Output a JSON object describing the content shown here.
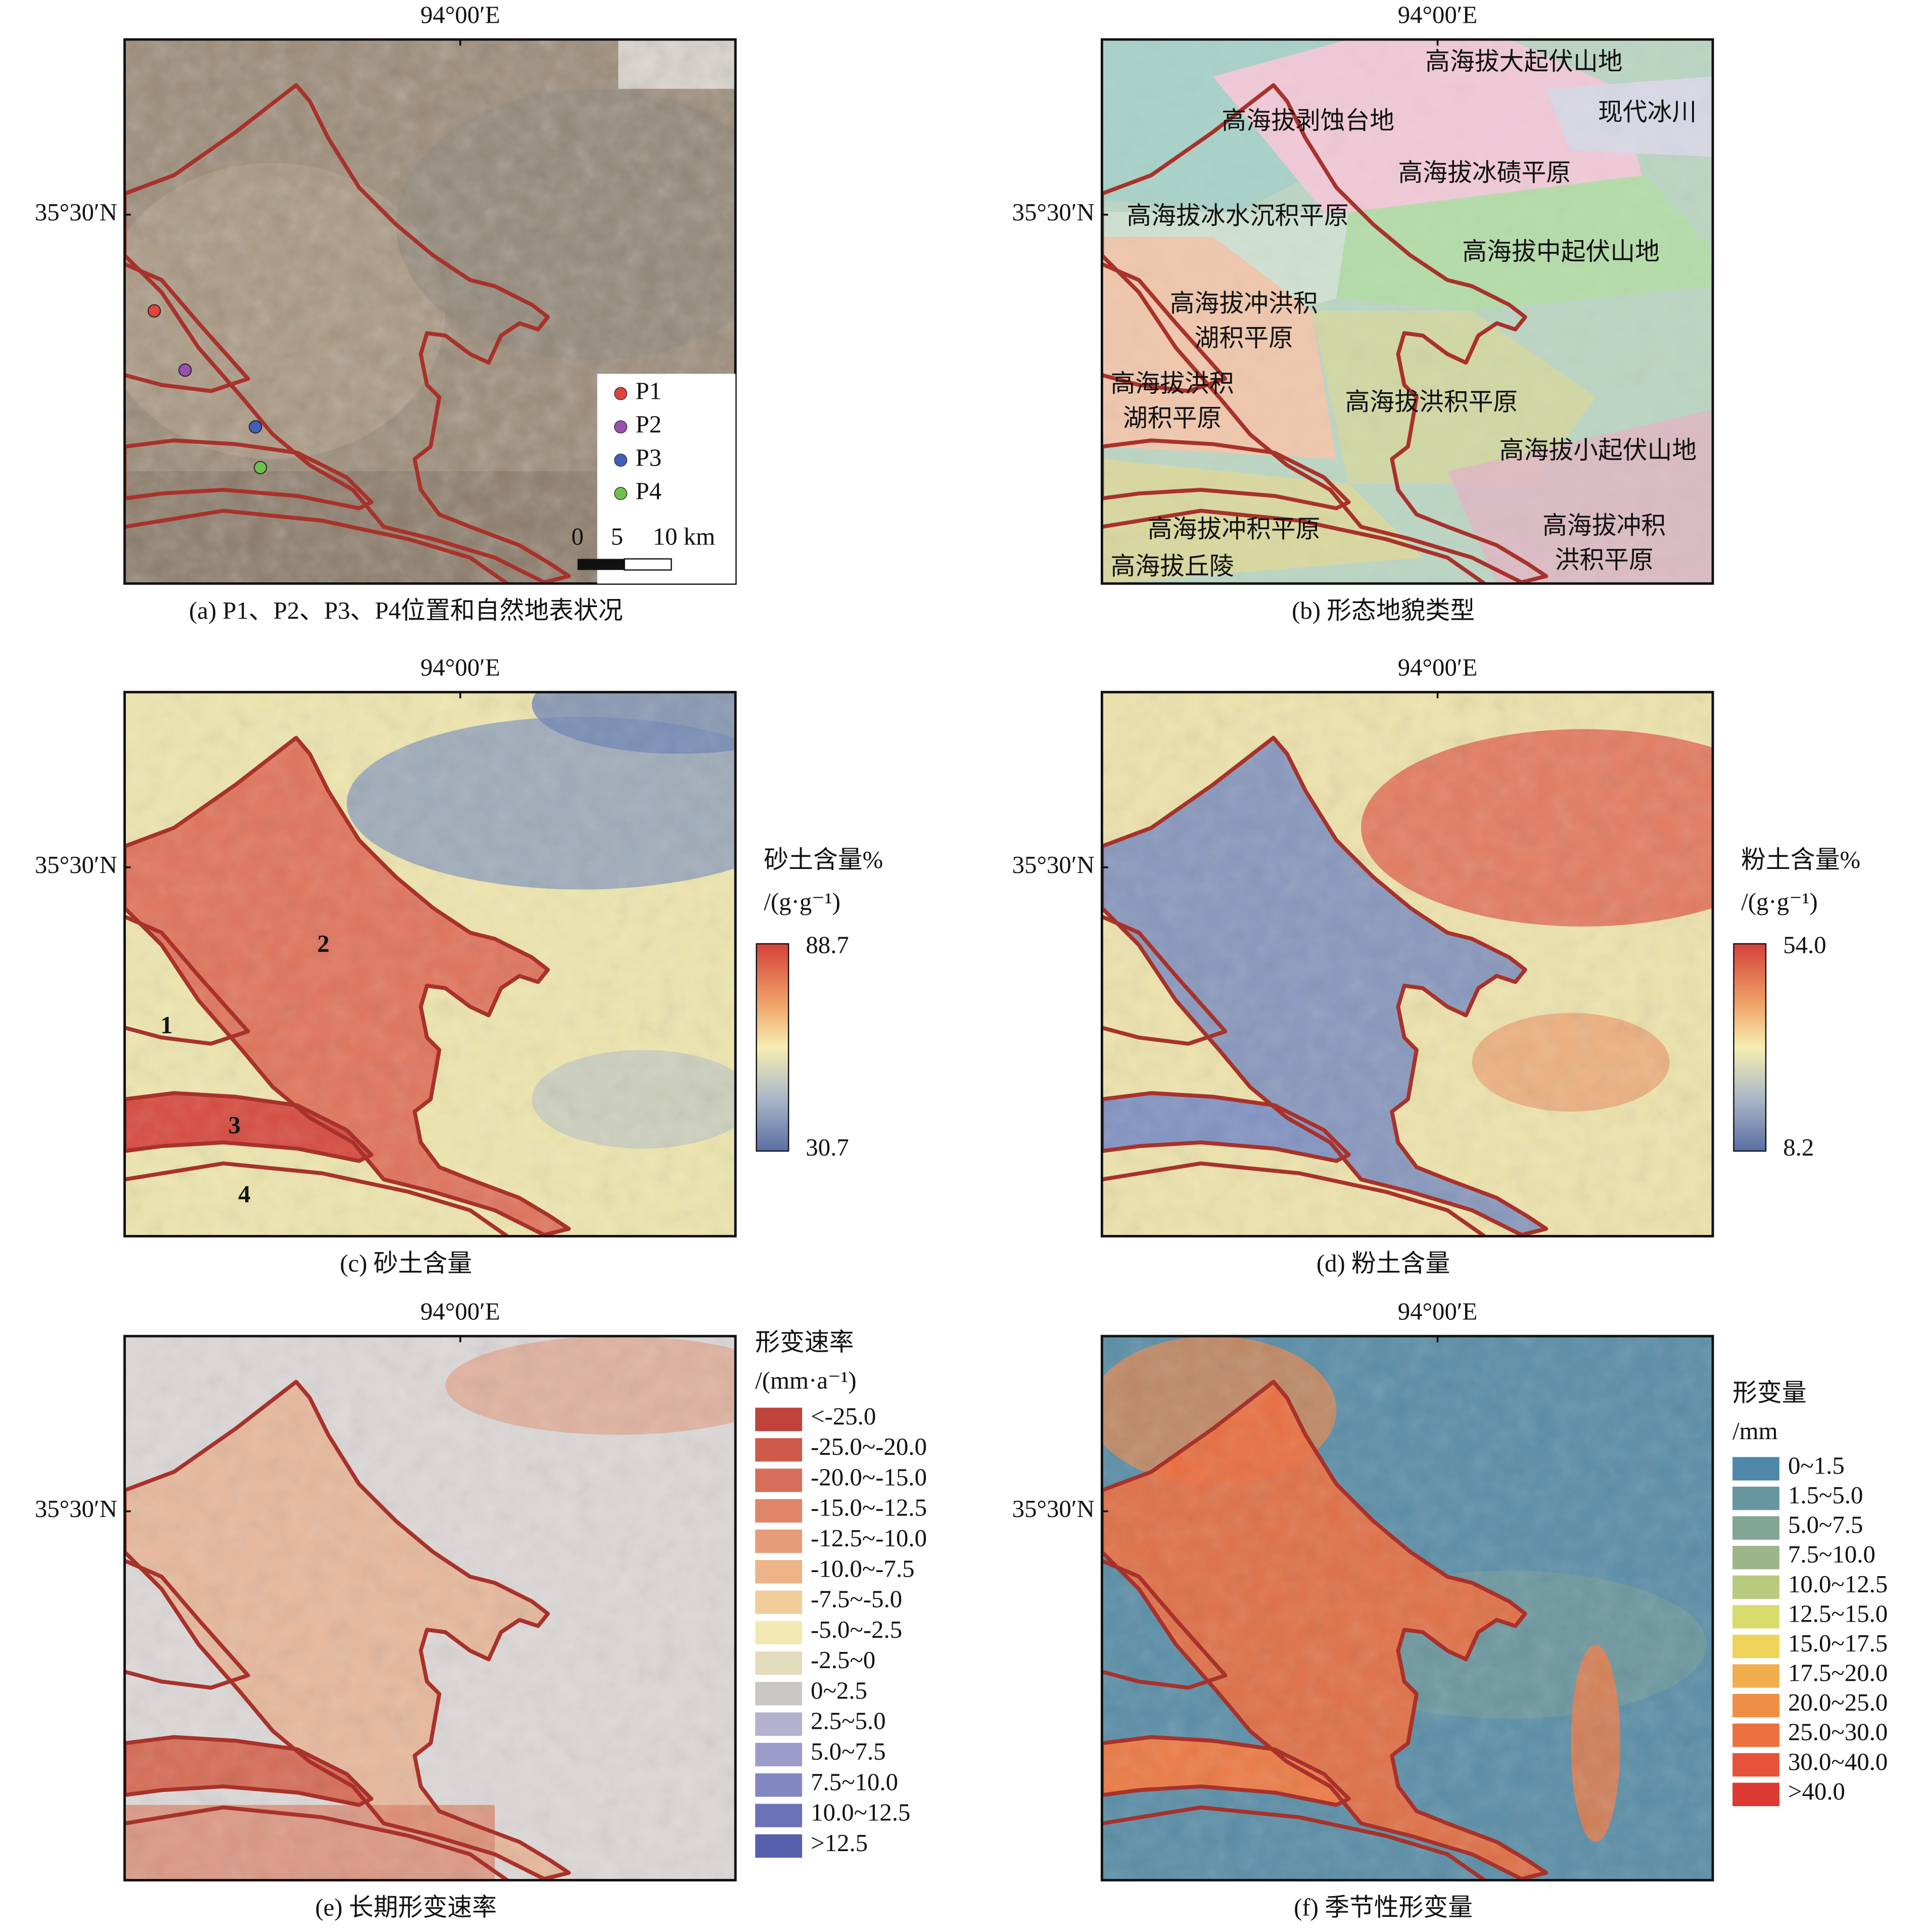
{
  "panels": [
    {
      "lon_label": "94°00′E",
      "lat_label": "35°30′N",
      "caption": "(a) P1、P2、P3、P4位置和自然地表状况",
      "legend": [
        {
          "label": "P1",
          "color": "#e0443a"
        },
        {
          "label": "P2",
          "color": "#9b4fb0"
        },
        {
          "label": "P3",
          "color": "#3f5fb8"
        },
        {
          "label": "P4",
          "color": "#6fbf4a"
        }
      ],
      "scale_bar": [
        "0",
        "5",
        "10 km"
      ]
    },
    {
      "lon_label": "94°00′E",
      "lat_label": "35°30′N",
      "caption": "(b) 形态地貌类型",
      "landforms": [
        "高海拔大起伏山地",
        "现代冰川",
        "高海拔剥蚀台地",
        "高海拔冰碛平原",
        "高海拔冰水沉积平原",
        "高海拔中起伏山地",
        "高海拔冲洪积",
        "湖积平原",
        "高海拔洪积",
        "湖积平原",
        "高海拔洪积平原",
        "高海拔小起伏山地",
        "高海拔冲积平原",
        "高海拔冲积",
        "洪积平原",
        "高海拔丘陵"
      ]
    },
    {
      "lon_label": "94°00′E",
      "lat_label": "35°30′N",
      "caption": "(c) 砂土含量",
      "colorbar": {
        "title": "砂土含量%",
        "unit": "/(g·g⁻¹)",
        "max": "88.7",
        "min": "30.7"
      },
      "regions": [
        "1",
        "2",
        "3",
        "4"
      ]
    },
    {
      "lon_label": "94°00′E",
      "lat_label": "35°30′N",
      "caption": "(d) 粉土含量",
      "colorbar": {
        "title": "粉土含量%",
        "unit": "/(g·g⁻¹)",
        "max": "54.0",
        "min": "8.2"
      }
    },
    {
      "lon_label": "94°00′E",
      "lat_label": "35°30′N",
      "caption": "(e) 长期形变速率",
      "classes": {
        "title": "形变速率",
        "unit": "/(mm·a⁻¹)",
        "items": [
          {
            "label": "<-25.0",
            "color": "#c0433b"
          },
          {
            "label": "-25.0~-20.0",
            "color": "#cd5a4b"
          },
          {
            "label": "-20.0~-15.0",
            "color": "#d76f5b"
          },
          {
            "label": "-15.0~-12.5",
            "color": "#df8568"
          },
          {
            "label": "-12.5~-10.0",
            "color": "#e69c78"
          },
          {
            "label": "-10.0~-7.5",
            "color": "#ecb487"
          },
          {
            "label": "-7.5~-5.0",
            "color": "#f1cd99"
          },
          {
            "label": "-5.0~-2.5",
            "color": "#f4e8b2"
          },
          {
            "label": "-2.5~0",
            "color": "#e2dcbd"
          },
          {
            "label": "0~2.5",
            "color": "#c9c6c4"
          },
          {
            "label": "2.5~5.0",
            "color": "#b3b2cd"
          },
          {
            "label": "5.0~7.5",
            "color": "#9c9ccb"
          },
          {
            "label": "7.5~10.0",
            "color": "#8387c2"
          },
          {
            "label": "10.0~12.5",
            "color": "#6c72b8"
          },
          {
            "label": ">12.5",
            "color": "#5560ad"
          }
        ]
      }
    },
    {
      "lon_label": "94°00′E",
      "lat_label": "35°30′N",
      "caption": "(f) 季节性形变量",
      "classes": {
        "title": "形变量",
        "unit": "/mm",
        "items": [
          {
            "label": "0~1.5",
            "color": "#4f88a8"
          },
          {
            "label": "1.5~5.0",
            "color": "#6795a0"
          },
          {
            "label": "5.0~7.5",
            "color": "#82a594"
          },
          {
            "label": "7.5~10.0",
            "color": "#9cb68a"
          },
          {
            "label": "10.0~12.5",
            "color": "#b9c97d"
          },
          {
            "label": "12.5~15.0",
            "color": "#d8dc6d"
          },
          {
            "label": "15.0~17.5",
            "color": "#efd35b"
          },
          {
            "label": "17.5~20.0",
            "color": "#f0ae4f"
          },
          {
            "label": "20.0~25.0",
            "color": "#ef8f45"
          },
          {
            "label": "25.0~30.0",
            "color": "#ec7040"
          },
          {
            "label": "30.0~40.0",
            "color": "#e6533a"
          },
          {
            "label": ">40.0",
            "color": "#dc3a32"
          }
        ]
      }
    }
  ]
}
